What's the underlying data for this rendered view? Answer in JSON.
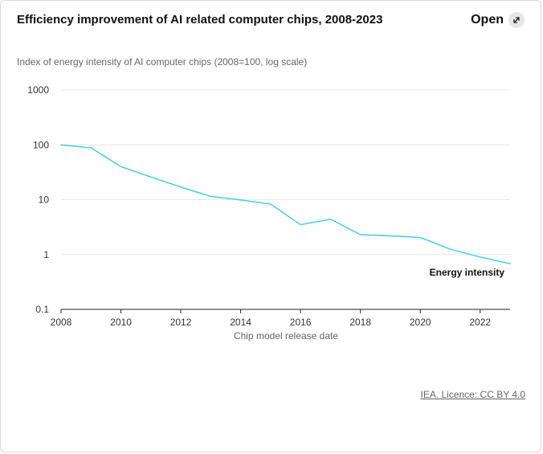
{
  "header": {
    "title": "Efficiency improvement of AI related computer chips, 2008-2023",
    "open_label": "Open"
  },
  "source": {
    "label": "IEA. Licence: CC BY 4.0"
  },
  "colors": {
    "line": "#4fd0ec",
    "grid": "#e6e6e6",
    "axis": "#222222",
    "text": "#333333"
  },
  "chart_data": {
    "type": "line",
    "title": "Efficiency improvement of AI related computer chips, 2008-2023",
    "subtitle": "Index of energy intensity of AI computer chips (2008=100, log scale)",
    "xlabel": "Chip model release date",
    "ylabel": "",
    "yscale": "log",
    "xlim": [
      2008,
      2023
    ],
    "ylim": [
      0.1,
      1000
    ],
    "x_ticks": [
      2008,
      2010,
      2012,
      2014,
      2016,
      2018,
      2020,
      2022
    ],
    "x_tick_labels": [
      "2008",
      "2010",
      "2012",
      "2014",
      "2016",
      "2018",
      "2020",
      "2022"
    ],
    "y_ticks": [
      0.1,
      1,
      10,
      100,
      1000
    ],
    "y_tick_labels": [
      "0.1",
      "1",
      "10",
      "100",
      "1000"
    ],
    "grid": true,
    "series": [
      {
        "name": "Energy intensity",
        "x": [
          2008,
          2009,
          2010,
          2011,
          2012,
          2013,
          2014,
          2015,
          2016,
          2017,
          2018,
          2019,
          2020,
          2021,
          2022,
          2023
        ],
        "values": [
          100,
          88,
          40,
          26,
          17,
          11.5,
          9.9,
          8.3,
          3.5,
          4.4,
          2.3,
          2.2,
          2.05,
          1.25,
          0.9,
          0.68
        ]
      }
    ]
  }
}
